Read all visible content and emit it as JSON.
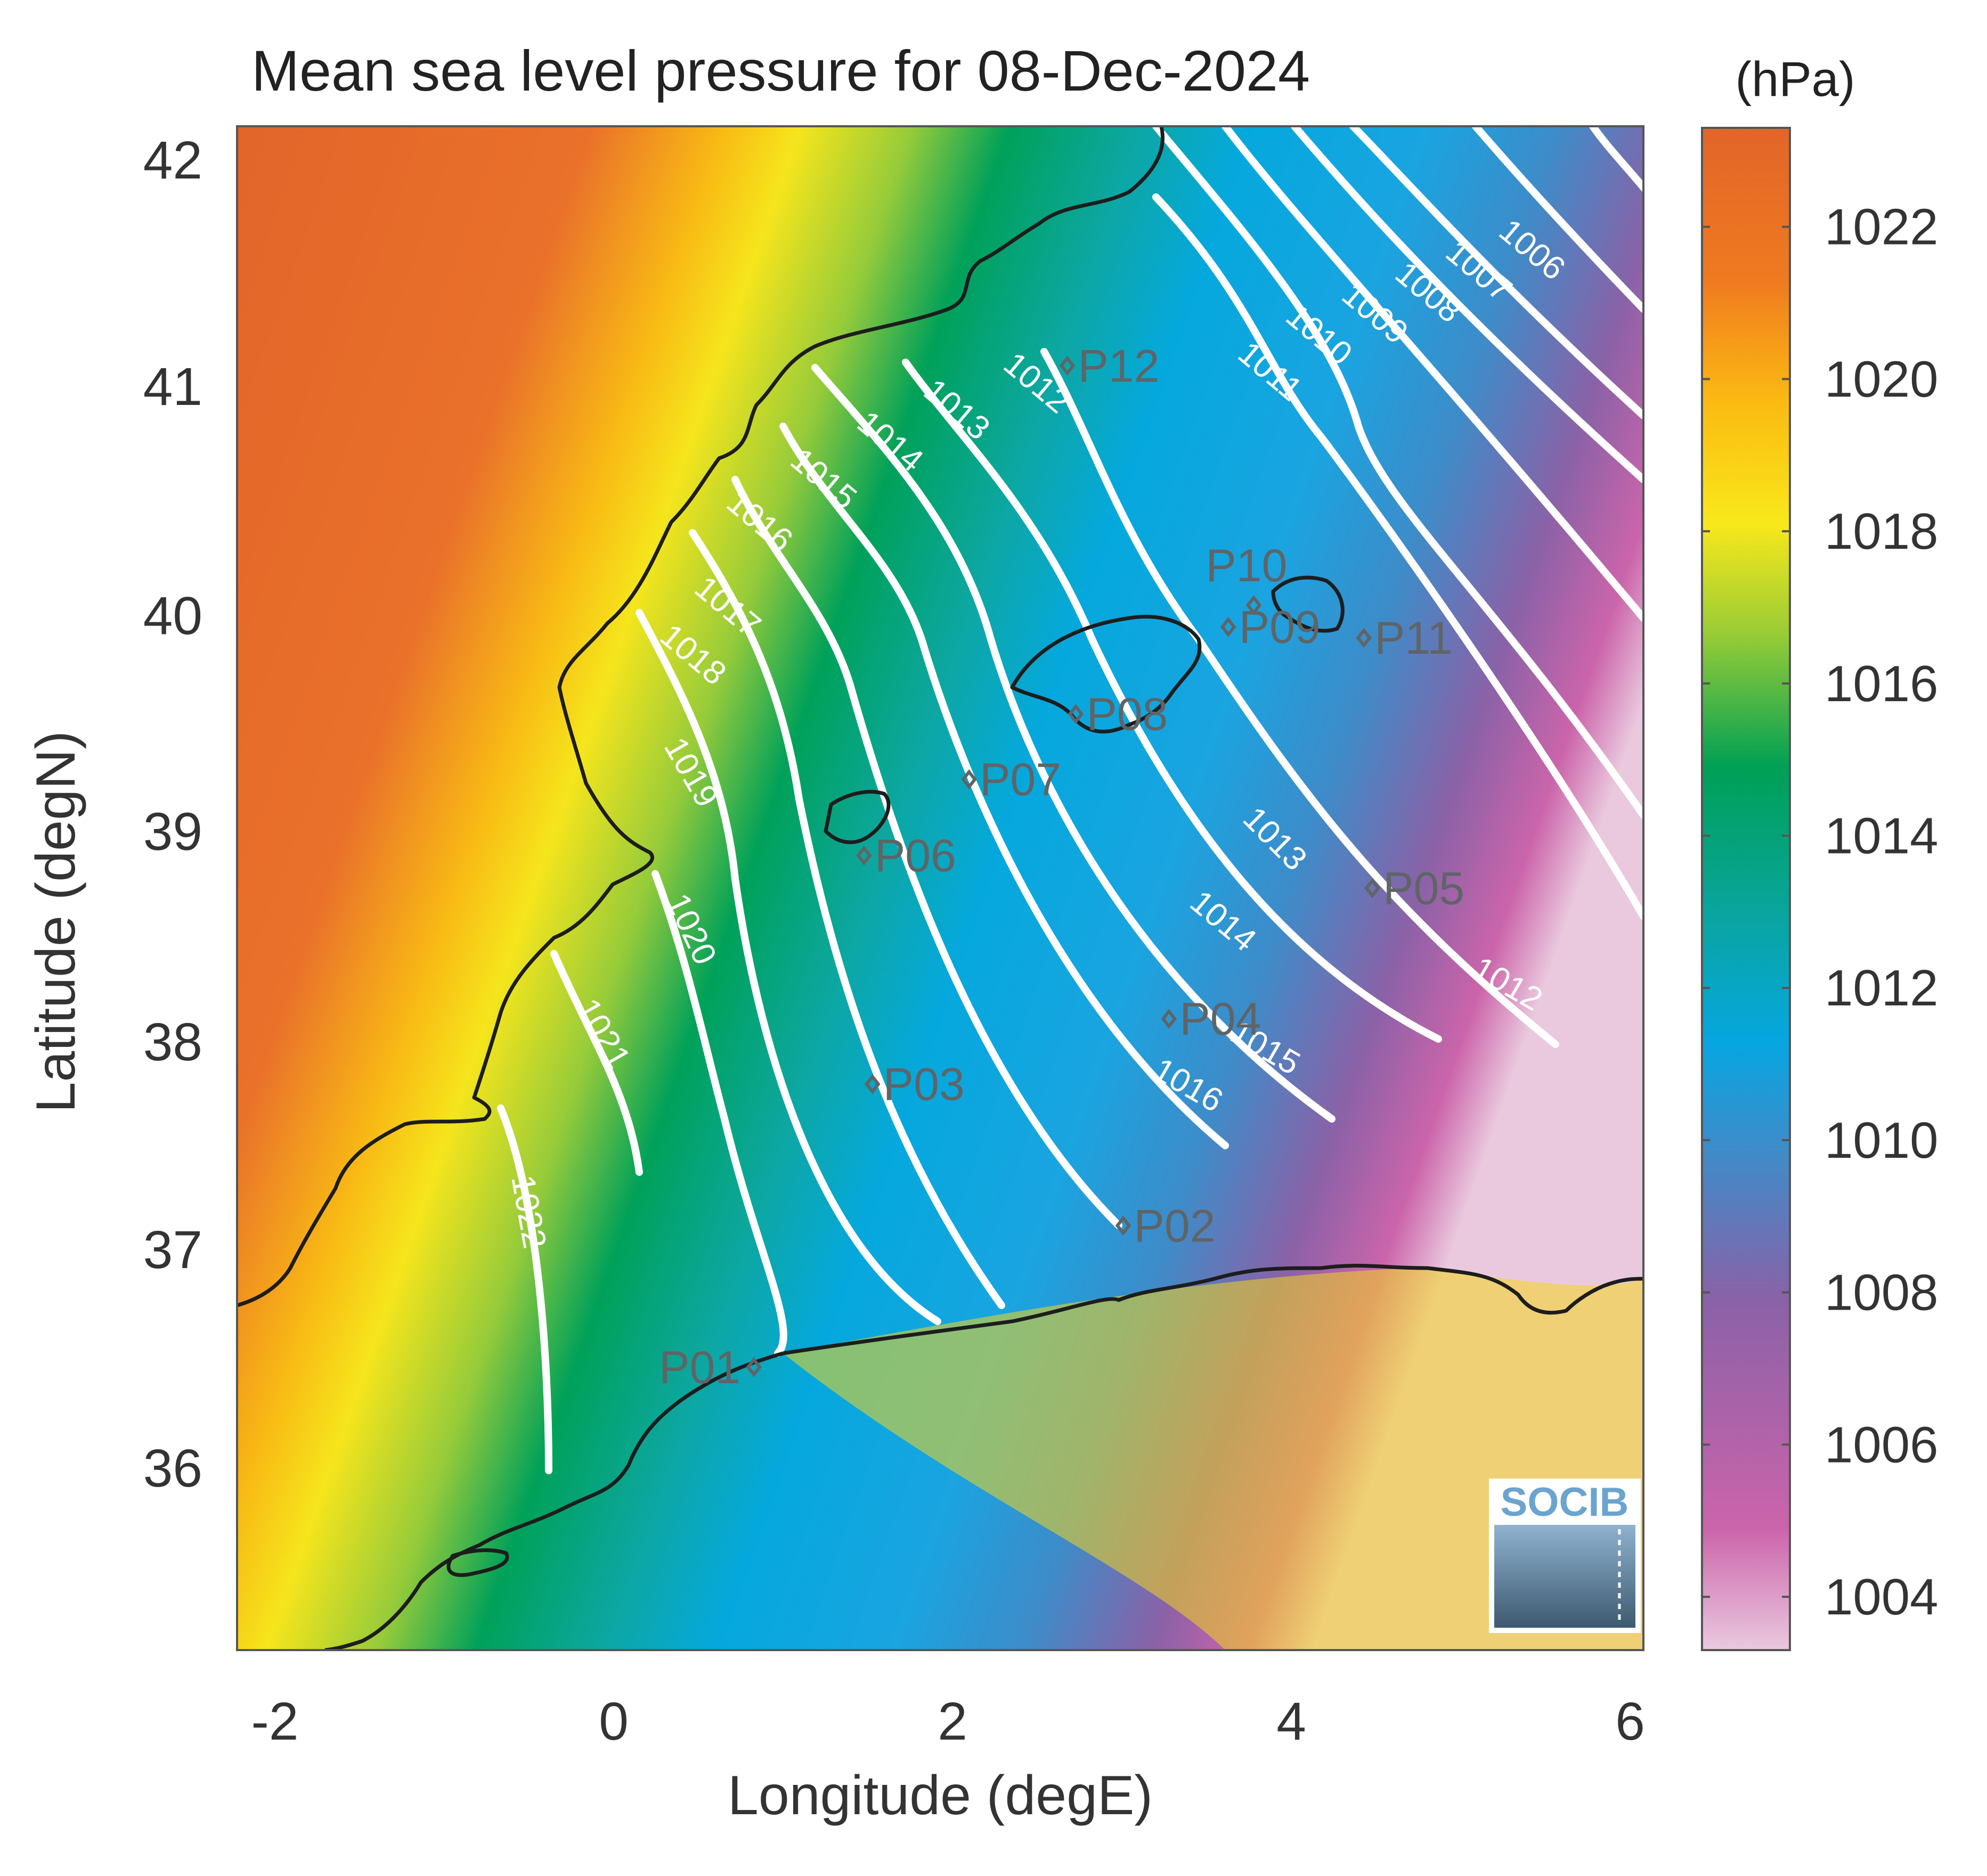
{
  "title": "Mean sea level pressure for 08-Dec-2024",
  "colorbar": {
    "unit": "(hPa)",
    "ticks": [
      "1004",
      "1006",
      "1008",
      "1010",
      "1012",
      "1014",
      "1016",
      "1018",
      "1020",
      "1022"
    ],
    "range": [
      1003.3,
      1023.3
    ],
    "colors": [
      "#eac9de",
      "#cb64aa",
      "#8a62a7",
      "#3d8cc9",
      "#06a6e0",
      "#0aa5a1",
      "#00a055",
      "#9ccd35",
      "#f8e81b",
      "#fbba12",
      "#ef7a20",
      "#e2652a"
    ]
  },
  "x_axis": {
    "label": "Longitude (degE)",
    "ticks": [
      "-2",
      "0",
      "2",
      "4",
      "6"
    ],
    "range": [
      -2.2,
      6.1
    ]
  },
  "y_axis": {
    "label": "Latitude (degN)",
    "ticks": [
      "36",
      "37",
      "38",
      "39",
      "40",
      "41",
      "42"
    ],
    "range": [
      35.2,
      42.2
    ]
  },
  "points": [
    {
      "name": "P01",
      "lon": 0.85,
      "lat": 36.5
    },
    {
      "name": "P02",
      "lon": 3.03,
      "lat": 37.15
    },
    {
      "name": "P03",
      "lon": 1.55,
      "lat": 37.8
    },
    {
      "name": "P04",
      "lon": 3.3,
      "lat": 38.1
    },
    {
      "name": "P05",
      "lon": 4.5,
      "lat": 38.7
    },
    {
      "name": "P06",
      "lon": 1.5,
      "lat": 38.85
    },
    {
      "name": "P07",
      "lon": 2.12,
      "lat": 39.2
    },
    {
      "name": "P08",
      "lon": 2.75,
      "lat": 39.5
    },
    {
      "name": "P09",
      "lon": 3.65,
      "lat": 39.9
    },
    {
      "name": "P10",
      "lon": 3.8,
      "lat": 40.0
    },
    {
      "name": "P11",
      "lon": 4.45,
      "lat": 39.85
    },
    {
      "name": "P12",
      "lon": 2.7,
      "lat": 41.1
    }
  ],
  "contour_labels": [
    "1006",
    "1007",
    "1008",
    "1009",
    "1010",
    "1011",
    "1012",
    "1013",
    "1014",
    "1015",
    "1016",
    "1017",
    "1018",
    "1019",
    "1020",
    "1021",
    "1022"
  ],
  "logo": "SOCIB"
}
